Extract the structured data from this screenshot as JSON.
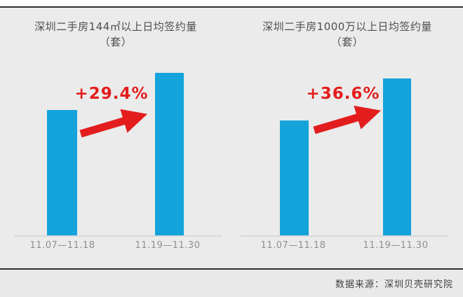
{
  "page": {
    "footer_source": "数据来源：深圳贝壳研究院"
  },
  "colors": {
    "bar": "#14a3db",
    "red": "#e31d1d",
    "bg": "#ebebeb",
    "strip": "#fcfcfc",
    "rule": "#2e2e2e",
    "axis": "#d9d9d9",
    "title": "#4f4f4f",
    "tick": "#909090",
    "footer_bg": "#e9e9e9",
    "footer_text": "#3f3f3f"
  },
  "chart_data": [
    {
      "type": "bar",
      "title": "深圳二手房144㎡以上日均签约量",
      "subtitle": "（套）",
      "categories": [
        "11.07—11.18",
        "11.19—11.30"
      ],
      "values": [
        100,
        129.4
      ],
      "annotation": "+29.4%",
      "xlabel": "",
      "ylabel": "",
      "y_axis_shown": false,
      "grid": false,
      "legend": "none"
    },
    {
      "type": "bar",
      "title": "深圳二手房1000万以上日均签约量",
      "subtitle": "（套）",
      "categories": [
        "11.07—11.18",
        "11.19—11.30"
      ],
      "values": [
        100,
        136.6
      ],
      "annotation": "+36.6%",
      "xlabel": "",
      "ylabel": "",
      "y_axis_shown": false,
      "grid": false,
      "legend": "none"
    }
  ]
}
